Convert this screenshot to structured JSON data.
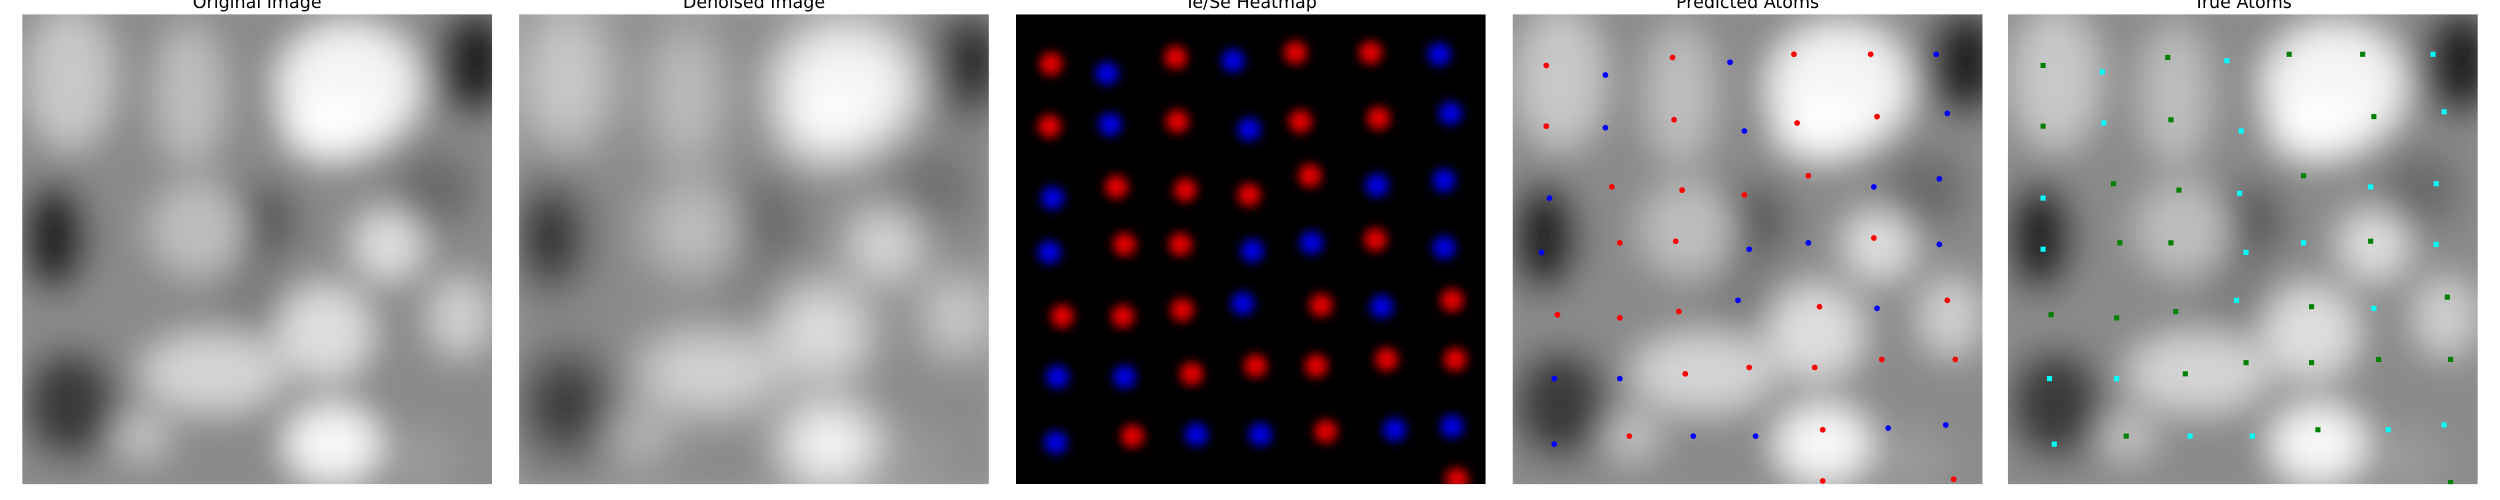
{
  "chart_data": [
    {
      "type": "image",
      "title": "Original Image"
    },
    {
      "type": "image",
      "title": "Denoised Image"
    },
    {
      "type": "heatmap",
      "title": "Te/Se Heatmap",
      "xlim": [
        0,
        294
      ],
      "ylim": [
        294,
        0
      ],
      "series": [
        {
          "color": "#ff0000",
          "x": [
            22,
            100,
            175,
            222,
            21,
            101,
            178,
            227,
            63,
            106,
            146,
            184,
            68,
            103,
            225,
            29,
            67,
            104,
            191,
            273,
            110,
            150,
            188,
            232,
            275,
            73,
            194,
            276
          ],
          "values": [
            31,
            27,
            24,
            24,
            70,
            67,
            67,
            65,
            108,
            110,
            113,
            101,
            144,
            144,
            141,
            189,
            189,
            185,
            182,
            179,
            225,
            220,
            220,
            216,
            216,
            264,
            261,
            291
          ]
        },
        {
          "color": "#0000ff",
          "x": [
            57,
            136,
            265,
            59,
            146,
            272,
            23,
            226,
            268,
            21,
            148,
            185,
            268,
            142,
            229,
            26,
            68,
            113,
            153,
            237,
            273,
            25
          ],
          "values": [
            37,
            29,
            25,
            69,
            72,
            62,
            115,
            107,
            104,
            149,
            148,
            143,
            146,
            181,
            183,
            227,
            227,
            263,
            263,
            260,
            258,
            268
          ]
        }
      ]
    },
    {
      "type": "scatter",
      "title": "Predicted Atoms",
      "xlim": [
        0,
        294
      ],
      "ylim": [
        294,
        0
      ],
      "series": [
        {
          "color": "#ff0000",
          "x": [
            21,
            100,
            176,
            224,
            21,
            101,
            178,
            228,
            62,
            106,
            145,
            185,
            67,
            102,
            226,
            28,
            67,
            104,
            192,
            272,
            108,
            148,
            189,
            231,
            277,
            73,
            194,
            194,
            276
          ],
          "values": [
            32,
            27,
            25,
            25,
            70,
            66,
            68,
            64,
            108,
            110,
            113,
            101,
            143,
            142,
            140,
            188,
            190,
            186,
            183,
            179,
            225,
            221,
            221,
            216,
            216,
            264,
            260,
            292,
            291
          ]
        },
        {
          "color": "#0000ff",
          "x": [
            58,
            136,
            265,
            58,
            145,
            272,
            23,
            226,
            267,
            18,
            148,
            185,
            267,
            141,
            228,
            26,
            67,
            113,
            152,
            235,
            271,
            26
          ],
          "values": [
            38,
            30,
            25,
            71,
            73,
            62,
            115,
            108,
            103,
            149,
            147,
            143,
            144,
            179,
            184,
            228,
            228,
            264,
            264,
            259,
            257,
            269
          ]
        }
      ]
    },
    {
      "type": "scatter",
      "title": "True Atoms",
      "xlim": [
        0,
        294
      ],
      "ylim": [
        294,
        0
      ],
      "series": [
        {
          "color": "#008000",
          "x": [
            22,
            100,
            176,
            222,
            22,
            102,
            229,
            66,
            107,
            185,
            70,
            102,
            227,
            27,
            68,
            105,
            190,
            275,
            111,
            149,
            190,
            232,
            277,
            74,
            194,
            277
          ],
          "values": [
            32,
            27,
            25,
            25,
            70,
            66,
            64,
            106,
            110,
            101,
            143,
            143,
            142,
            188,
            190,
            186,
            183,
            177,
            225,
            218,
            218,
            216,
            216,
            264,
            260,
            293
          ]
        },
        {
          "color": "#00ffff",
          "x": [
            59,
            137,
            266,
            60,
            146,
            273,
            22,
            145,
            227,
            268,
            22,
            149,
            185,
            268,
            143,
            229,
            26,
            68,
            114,
            153,
            238,
            273,
            29
          ],
          "values": [
            36,
            29,
            25,
            68,
            73,
            61,
            115,
            112,
            108,
            106,
            147,
            149,
            143,
            144,
            179,
            184,
            228,
            228,
            264,
            264,
            260,
            257,
            269
          ]
        }
      ]
    }
  ]
}
